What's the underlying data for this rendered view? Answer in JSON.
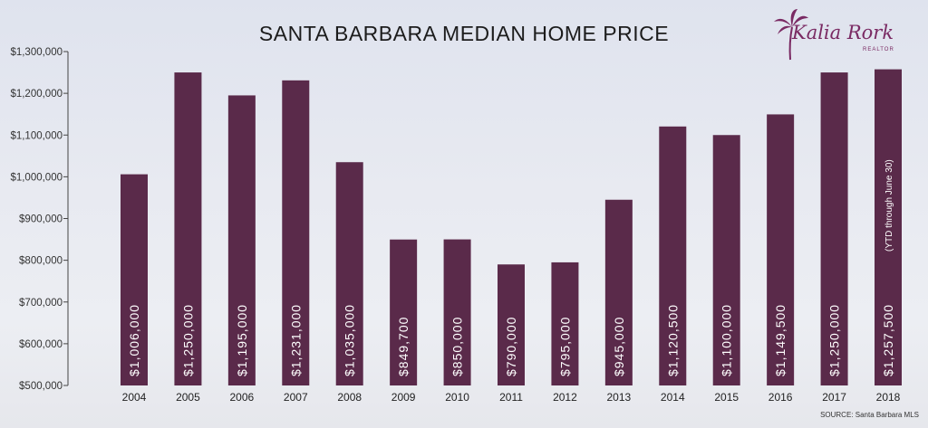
{
  "title": "SANTA BARBARA MEDIAN HOME PRICE",
  "source": "SOURCE: Santa Barbara MLS",
  "logo": {
    "name": "Kalia Rork",
    "subtitle": "REALTOR"
  },
  "colors": {
    "bar": "#5a2a4a",
    "accent": "#7a2a63",
    "background": "#e6e8ef"
  },
  "chart_data": {
    "type": "bar",
    "title": "SANTA BARBARA MEDIAN HOME PRICE",
    "xlabel": "",
    "ylabel": "",
    "ylim": [
      500000,
      1300000
    ],
    "yticks": [
      500000,
      600000,
      700000,
      800000,
      900000,
      1000000,
      1100000,
      1200000,
      1300000
    ],
    "ytick_labels": [
      "$500,000",
      "$600,000",
      "$700,000",
      "$800,000",
      "$900,000",
      "$1,000,000",
      "$1,100,000",
      "$1,200,000",
      "$1,300,000"
    ],
    "categories": [
      "2004",
      "2005",
      "2006",
      "2007",
      "2008",
      "2009",
      "2010",
      "2011",
      "2012",
      "2013",
      "2014",
      "2015",
      "2016",
      "2017",
      "2018"
    ],
    "values": [
      1006000,
      1250000,
      1195000,
      1231000,
      1035000,
      849700,
      850000,
      790000,
      795000,
      945000,
      1120500,
      1100000,
      1149500,
      1250000,
      1257500
    ],
    "data_labels": [
      "$1,006,000",
      "$1,250,000",
      "$1,195,000",
      "$1,231,000",
      "$1,035,000",
      "$849,700",
      "$850,000",
      "$790,000",
      "$795,000",
      "$945,000",
      "$1,120,500",
      "$1,100,000",
      "$1,149,500",
      "$1,250,000",
      "$1,257,500"
    ],
    "annotations": [
      "(YTD through June 30)"
    ],
    "grid": false,
    "legend": "none"
  }
}
